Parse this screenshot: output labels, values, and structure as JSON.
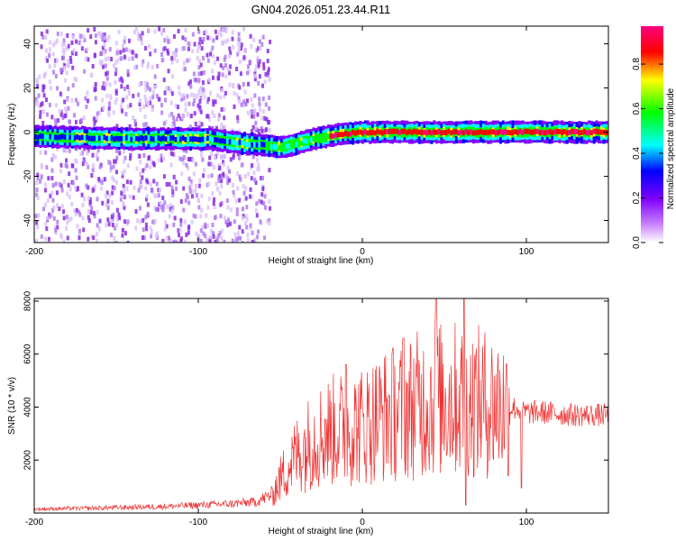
{
  "title": "GN04.2026.051.23.44.R11",
  "chart_data": [
    {
      "type": "heatmap",
      "xlabel": "Height of straight line (km)",
      "ylabel": "Frequency (Hz)",
      "xlim": [
        -200,
        150
      ],
      "ylim": [
        -50,
        48
      ],
      "xticks": [
        -200,
        -100,
        0,
        100
      ],
      "yticks": [
        -40,
        -20,
        0,
        20,
        40
      ],
      "colorbar": {
        "label": "Normalized spectral amplitude",
        "range": [
          0,
          0.97
        ],
        "ticks": [
          0.0,
          0.2,
          0.4,
          0.6,
          0.8
        ],
        "colormap": [
          "#ffffff",
          "#cc88ff",
          "#8000ff",
          "#0000ff",
          "#00ffff",
          "#00ff00",
          "#ffff00",
          "#ff0000",
          "#ff0080"
        ]
      },
      "noise_region_x": [
        -200,
        -57
      ],
      "ridge": [
        {
          "x": -200,
          "y": -2
        },
        {
          "x": -140,
          "y": -3
        },
        {
          "x": -110,
          "y": -3
        },
        {
          "x": -95,
          "y": -3
        },
        {
          "x": -75,
          "y": -5
        },
        {
          "x": -60,
          "y": -6
        },
        {
          "x": -50,
          "y": -7
        },
        {
          "x": -40,
          "y": -5
        },
        {
          "x": -30,
          "y": -3
        },
        {
          "x": -15,
          "y": -1
        },
        {
          "x": 0,
          "y": 0
        },
        {
          "x": 20,
          "y": 0
        },
        {
          "x": 60,
          "y": 0
        },
        {
          "x": 100,
          "y": 0
        },
        {
          "x": 150,
          "y": 0
        }
      ],
      "grid": false
    },
    {
      "type": "line",
      "xlabel": "Height of straight line (km)",
      "ylabel": "SNR (10 * v/v)",
      "xlim": [
        -200,
        150
      ],
      "ylim": [
        0,
        8100
      ],
      "xticks": [
        -200,
        -100,
        0,
        100
      ],
      "yticks": [
        2000,
        4000,
        6000,
        8000
      ],
      "color": "#ee3333",
      "series": [
        {
          "x": [
            -200,
            -180,
            -160,
            -140,
            -120,
            -100,
            -80,
            -65,
            -55,
            -48,
            -40,
            -30,
            -20,
            -10,
            0,
            10,
            20,
            30,
            40,
            50,
            60,
            70,
            80,
            90,
            97,
            100,
            110,
            120,
            130,
            140,
            150
          ],
          "y": [
            150,
            170,
            190,
            220,
            250,
            300,
            350,
            420,
            700,
            1500,
            2200,
            2800,
            3100,
            3200,
            3300,
            3600,
            3800,
            4000,
            4200,
            4300,
            4300,
            4200,
            4100,
            4000,
            3900,
            3800,
            3800,
            3750,
            3700,
            3700,
            3700
          ]
        }
      ],
      "peaks": [
        {
          "x": -10,
          "y": 5600
        },
        {
          "x": 25,
          "y": 6600
        },
        {
          "x": 45,
          "y": 8100
        },
        {
          "x": 62,
          "y": 8100
        },
        {
          "x": 97,
          "y": 8000
        }
      ],
      "dips": [
        {
          "x": 97,
          "y": 950
        },
        {
          "x": 63,
          "y": 300
        }
      ],
      "grid": false
    }
  ]
}
